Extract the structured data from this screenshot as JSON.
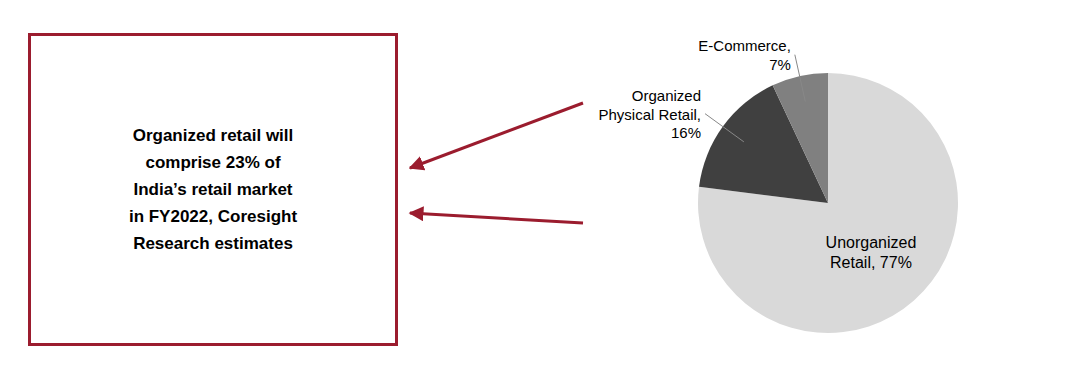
{
  "chart_data": {
    "type": "pie",
    "values": [
      77,
      16,
      7
    ],
    "value_labels": [
      "Unorganized\nRetail, 77%",
      "Organized\nPhysical Retail,\n16%",
      "E-Commerce,\n7%"
    ],
    "colors": [
      "#d9d9d9",
      "#404040",
      "#808080"
    ],
    "data_labels": true,
    "annotations": [
      {
        "text": "Organized retail will\ncomprise 23% of\nIndia’s retail market\nin FY2022, Coresight\nResearch estimates",
        "color": "#9b1c2e"
      }
    ]
  }
}
